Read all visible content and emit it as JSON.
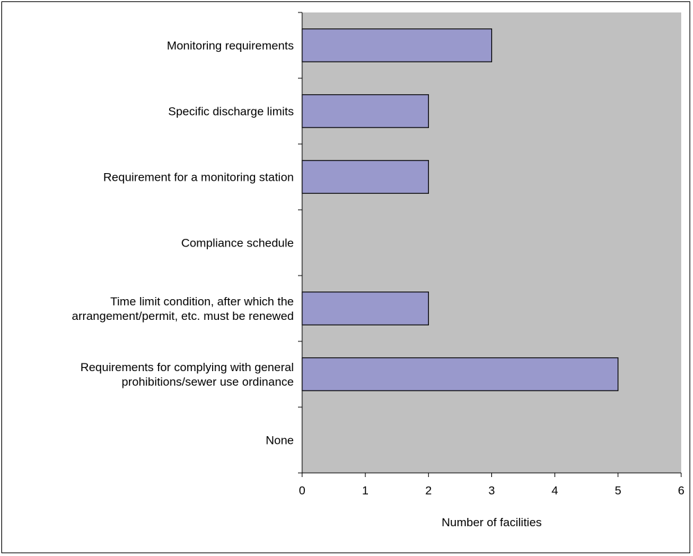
{
  "chart_data": {
    "type": "bar",
    "orientation": "horizontal",
    "categories": [
      [
        "Monitoring requirements"
      ],
      [
        "Specific discharge limits"
      ],
      [
        "Requirement for a monitoring station"
      ],
      [
        "Compliance schedule"
      ],
      [
        "Time limit condition, after which the",
        "arrangement/permit, etc. must be renewed"
      ],
      [
        "Requirements for complying with general",
        "prohibitions/sewer use ordinance"
      ],
      [
        "None"
      ]
    ],
    "values": [
      3,
      2,
      2,
      0,
      2,
      5,
      0
    ],
    "xlabel": "Number of facilities",
    "ylabel": "",
    "xlim": [
      0,
      6
    ],
    "xticks": [
      "0",
      "1",
      "2",
      "3",
      "4",
      "5",
      "6"
    ],
    "grid": false,
    "legend": "none",
    "colors": {
      "plot_background": "#c0c0c0",
      "bar_fill": "#9999cc",
      "bar_stroke": "#000000"
    }
  }
}
